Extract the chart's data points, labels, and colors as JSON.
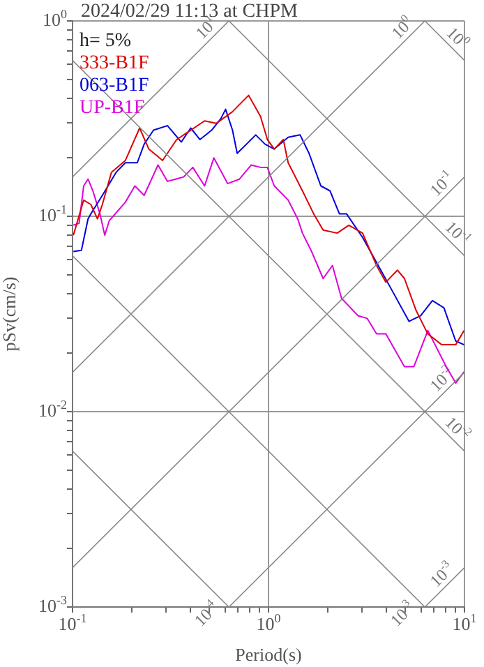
{
  "chart_data": {
    "type": "line",
    "title": "2024/02/29 11:13 at CHPM",
    "xlabel": "Period(s)",
    "ylabel": "pSv(cm/s)",
    "legend_title": "h= 5%",
    "legend": "top left",
    "grid": true,
    "log": "xy",
    "marker": "none",
    "line_style": "solid",
    "xlim": [
      0.1,
      10
    ],
    "ylim": [
      0.001,
      1
    ],
    "xticks": [
      {
        "value": 0.1,
        "label": "10$^{-1}$"
      },
      {
        "value": 0.2,
        "label": null
      },
      {
        "value": 0.3,
        "label": null
      },
      {
        "value": 0.4,
        "label": null
      },
      {
        "value": 0.5,
        "label": null
      },
      {
        "value": 0.6,
        "label": null
      },
      {
        "value": 0.7,
        "label": null
      },
      {
        "value": 0.8,
        "label": null
      },
      {
        "value": 0.9,
        "label": null
      },
      {
        "value": 1,
        "label": "10$^{0}$"
      },
      {
        "value": 2,
        "label": null
      },
      {
        "value": 3,
        "label": null
      },
      {
        "value": 4,
        "label": null
      },
      {
        "value": 5,
        "label": null
      },
      {
        "value": 6,
        "label": null
      },
      {
        "value": 7,
        "label": null
      },
      {
        "value": 8,
        "label": null
      },
      {
        "value": 9,
        "label": null
      },
      {
        "value": 10,
        "label": "10$^{1}$"
      }
    ],
    "yticks": [
      {
        "value": 0.001,
        "label": "10$^{-3}$"
      },
      {
        "value": 0.002,
        "label": null
      },
      {
        "value": 0.003,
        "label": null
      },
      {
        "value": 0.004,
        "label": null
      },
      {
        "value": 0.005,
        "label": null
      },
      {
        "value": 0.006,
        "label": null
      },
      {
        "value": 0.007,
        "label": null
      },
      {
        "value": 0.008,
        "label": null
      },
      {
        "value": 0.009,
        "label": null
      },
      {
        "value": 0.01,
        "label": "10$^{-2}$"
      },
      {
        "value": 0.02,
        "label": null
      },
      {
        "value": 0.03,
        "label": null
      },
      {
        "value": 0.04,
        "label": null
      },
      {
        "value": 0.05,
        "label": null
      },
      {
        "value": 0.06,
        "label": null
      },
      {
        "value": 0.07,
        "label": null
      },
      {
        "value": 0.08,
        "label": null
      },
      {
        "value": 0.09,
        "label": null
      },
      {
        "value": 0.1,
        "label": "10$^{-1}$"
      },
      {
        "value": 0.2,
        "label": null
      },
      {
        "value": 0.3,
        "label": null
      },
      {
        "value": 0.4,
        "label": null
      },
      {
        "value": 0.5,
        "label": null
      },
      {
        "value": 0.6,
        "label": null
      },
      {
        "value": 0.7,
        "label": null
      },
      {
        "value": 0.8,
        "label": null
      },
      {
        "value": 0.9,
        "label": null
      },
      {
        "value": 1,
        "label": "10$^{0}$"
      }
    ],
    "annotations": [
      {
        "text": "10$^{1}$",
        "x": 0.628,
        "y": 1
      },
      {
        "text": "10$^{0}$",
        "x": 6.28,
        "y": 1
      },
      {
        "text": "10$^{0}$",
        "x": 10,
        "y": 0.628
      },
      {
        "text": "10$^{-1}$",
        "x": 10,
        "y": 0.159
      },
      {
        "text": "10$^{-1}$",
        "x": 10,
        "y": 0.0628
      },
      {
        "text": "10$^{-2}$",
        "x": 10,
        "y": 0.0159
      },
      {
        "text": "10$^{-2}$",
        "x": 10,
        "y": 0.00628
      },
      {
        "text": "10$^{-4}$",
        "x": 0.628,
        "y": 0.001
      },
      {
        "text": "10$^{-3}$",
        "x": 6.28,
        "y": 0.001
      },
      {
        "text": "10$^{-3}$",
        "x": 10,
        "y": 0.00159
      }
    ],
    "series": [
      {
        "color": "#888888",
        "x": [
          0.1,
          0.628
        ],
        "values": [
          0.159,
          1
        ]
      },
      {
        "color": "#888888",
        "x": [
          0.1,
          6.28
        ],
        "values": [
          0.0159,
          1
        ]
      },
      {
        "color": "#888888",
        "x": [
          0.1,
          10
        ],
        "values": [
          0.00159,
          0.159
        ]
      },
      {
        "color": "#888888",
        "x": [
          0.628,
          10
        ],
        "values": [
          0.001,
          0.0159
        ]
      },
      {
        "color": "#888888",
        "x": [
          6.28,
          10
        ],
        "values": [
          0.001,
          0.00159
        ]
      },
      {
        "color": "#888888",
        "x": [
          6.28,
          10
        ],
        "values": [
          1,
          0.628
        ]
      },
      {
        "color": "#888888",
        "x": [
          0.628,
          10
        ],
        "values": [
          1,
          0.0628
        ]
      },
      {
        "color": "#888888",
        "x": [
          0.1,
          10
        ],
        "values": [
          0.628,
          0.00628
        ]
      },
      {
        "color": "#888888",
        "x": [
          0.1,
          6.28
        ],
        "values": [
          0.0628,
          0.001
        ]
      },
      {
        "color": "#888888",
        "x": [
          0.1,
          0.628
        ],
        "values": [
          0.00628,
          0.001
        ]
      },
      {
        "name": "333-B1F",
        "color": "#dd0000",
        "x": [
          0.101,
          0.114,
          0.124,
          0.134,
          0.142,
          0.158,
          0.186,
          0.22,
          0.245,
          0.288,
          0.34,
          0.401,
          0.472,
          0.541,
          0.655,
          0.711,
          0.792,
          0.91,
          0.987,
          1.07,
          1.19,
          1.26,
          1.49,
          1.7,
          1.9,
          2.24,
          2.57,
          3.02,
          3.56,
          3.97,
          4.55,
          4.94,
          5.66,
          6.5,
          7.66,
          9.02,
          9.95
        ],
        "values": [
          0.08,
          0.121,
          0.115,
          0.097,
          0.115,
          0.168,
          0.193,
          0.283,
          0.221,
          0.193,
          0.247,
          0.276,
          0.308,
          0.299,
          0.343,
          0.373,
          0.416,
          0.325,
          0.247,
          0.221,
          0.247,
          0.188,
          0.135,
          0.103,
          0.085,
          0.082,
          0.09,
          0.082,
          0.056,
          0.046,
          0.053,
          0.048,
          0.033,
          0.025,
          0.022,
          0.022,
          0.026
        ]
      },
      {
        "name": "063-B1F",
        "color": "#0000dd",
        "x": [
          0.101,
          0.111,
          0.12,
          0.124,
          0.142,
          0.167,
          0.186,
          0.214,
          0.232,
          0.259,
          0.305,
          0.359,
          0.401,
          0.447,
          0.513,
          0.571,
          0.604,
          0.655,
          0.692,
          0.772,
          0.861,
          0.96,
          1.07,
          1.26,
          1.45,
          1.61,
          1.85,
          2.06,
          2.3,
          2.5,
          3.02,
          3.56,
          4.2,
          5.21,
          5.98,
          6.86,
          7.85,
          9.02,
          9.95
        ],
        "values": [
          0.066,
          0.067,
          0.097,
          0.103,
          0.128,
          0.168,
          0.188,
          0.188,
          0.234,
          0.276,
          0.291,
          0.24,
          0.283,
          0.247,
          0.276,
          0.316,
          0.353,
          0.276,
          0.21,
          0.234,
          0.261,
          0.234,
          0.221,
          0.254,
          0.261,
          0.21,
          0.143,
          0.135,
          0.103,
          0.103,
          0.078,
          0.058,
          0.043,
          0.029,
          0.031,
          0.037,
          0.034,
          0.023,
          0.022
        ]
      },
      {
        "name": "UP-B1F",
        "color": "#dd00dd",
        "x": [
          0.101,
          0.108,
          0.114,
          0.12,
          0.127,
          0.138,
          0.146,
          0.154,
          0.186,
          0.208,
          0.232,
          0.273,
          0.305,
          0.369,
          0.411,
          0.472,
          0.526,
          0.619,
          0.711,
          0.815,
          0.91,
          0.987,
          1.07,
          1.26,
          1.41,
          1.49,
          1.66,
          1.9,
          2.12,
          2.36,
          2.86,
          3.19,
          3.56,
          3.97,
          4.94,
          5.52,
          6.5,
          8.07,
          9.02,
          9.95
        ],
        "values": [
          0.09,
          0.092,
          0.143,
          0.155,
          0.135,
          0.103,
          0.08,
          0.095,
          0.118,
          0.143,
          0.128,
          0.183,
          0.151,
          0.159,
          0.178,
          0.143,
          0.199,
          0.147,
          0.155,
          0.183,
          0.178,
          0.178,
          0.143,
          0.121,
          0.097,
          0.082,
          0.066,
          0.048,
          0.056,
          0.038,
          0.031,
          0.03,
          0.025,
          0.025,
          0.017,
          0.017,
          0.026,
          0.017,
          0.014,
          0.016
        ]
      }
    ]
  }
}
